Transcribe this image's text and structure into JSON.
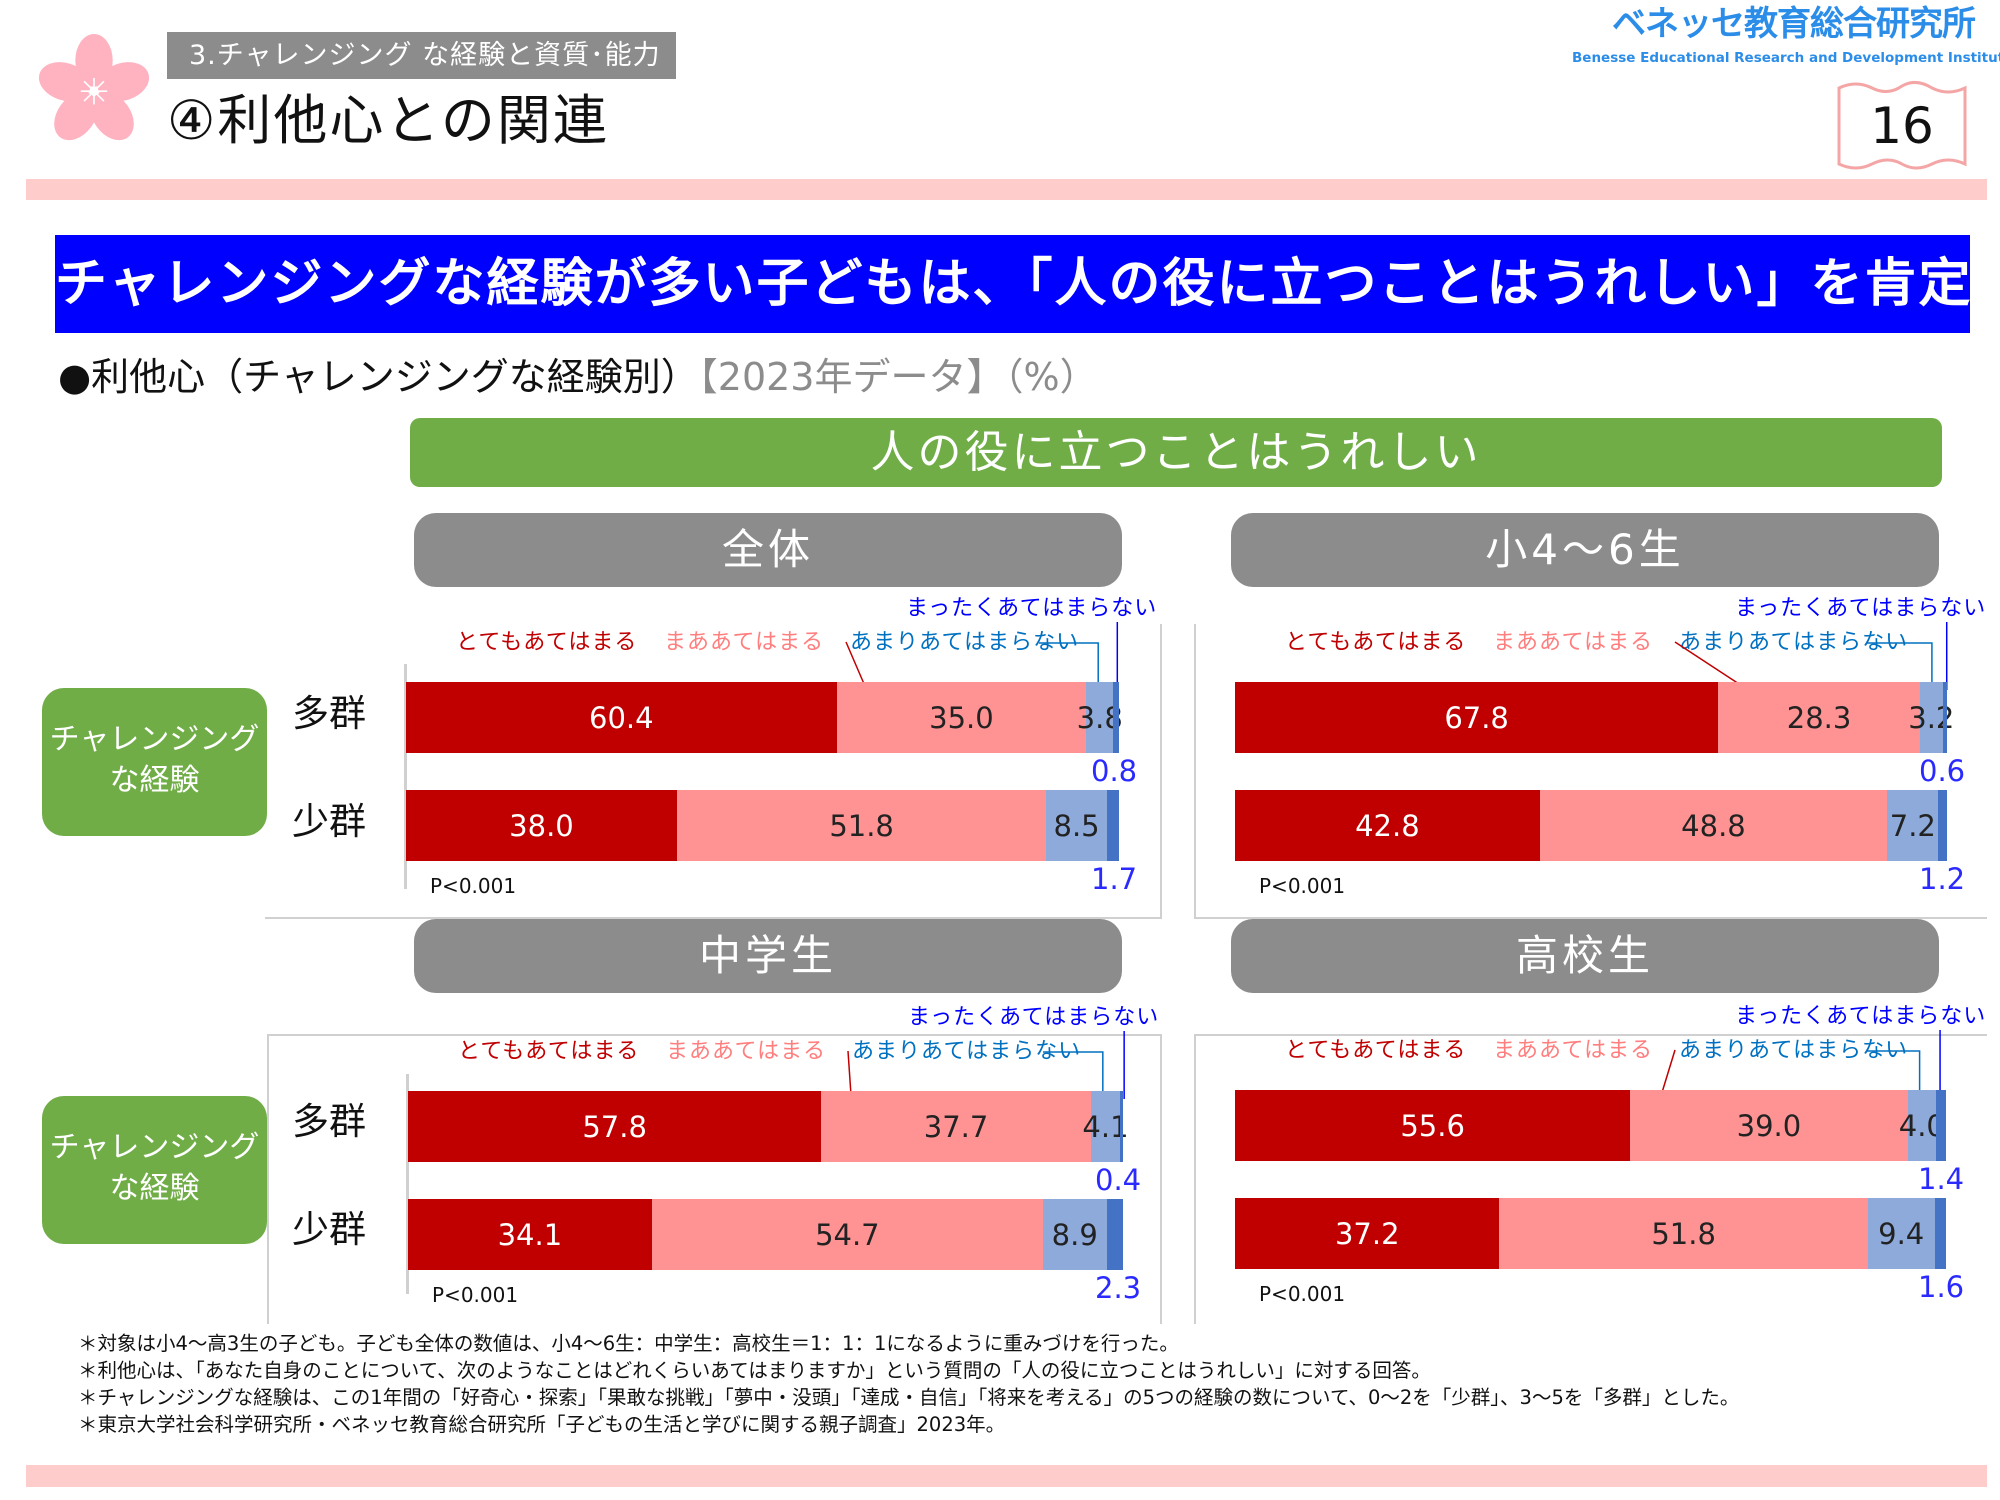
{
  "header": {
    "section": "3.チャレンジング な経験と資質･能力",
    "title": "④利他心との関連",
    "logo_jp": "ベネッセ教育総合研究所",
    "logo_en": "Benesse Educational Research and Development Institute",
    "page_number": "16"
  },
  "banner": "チャレンジングな経験が多い子どもは、「人の役に立つことはうれしい」を肯定",
  "subtitle": {
    "main": "●利他心（チャレンジングな経験別）",
    "note": "【2023年データ】（%）"
  },
  "question": "人の役に立つことはうれしい",
  "group_label": "チャレンジング\nな経験",
  "group_label_lines": [
    "チャレンジング",
    "な経験"
  ],
  "row_labels": [
    "多群",
    "少群"
  ],
  "colors": {
    "very": "#c00000",
    "somewhat": "#ff9393",
    "not_much": "#8eaadb",
    "not_at_all": "#4472c4"
  },
  "chart_data": [
    {
      "type": "bar",
      "stacked": true,
      "orientation": "horizontal",
      "title": "全体",
      "categories": [
        "多群",
        "少群"
      ],
      "legend": [
        "とてもあてはまる",
        "まああてはまる",
        "あまりあてはまらない",
        "まったくあてはまらない"
      ],
      "series": [
        {
          "name": "とてもあてはまる",
          "values": [
            60.4,
            38.0
          ]
        },
        {
          "name": "まああてはまる",
          "values": [
            35.0,
            51.8
          ]
        },
        {
          "name": "あまりあてはまらない",
          "values": [
            3.8,
            8.5
          ]
        },
        {
          "name": "まったくあてはまらない",
          "values": [
            0.8,
            1.7
          ]
        }
      ],
      "annotation": "P<0.001"
    },
    {
      "type": "bar",
      "stacked": true,
      "orientation": "horizontal",
      "title": "小4～6生",
      "categories": [
        "多群",
        "少群"
      ],
      "legend": [
        "とてもあてはまる",
        "まああてはまる",
        "あまりあてはまらない",
        "まったくあてはまらない"
      ],
      "series": [
        {
          "name": "とてもあてはまる",
          "values": [
            67.8,
            42.8
          ]
        },
        {
          "name": "まああてはまる",
          "values": [
            28.3,
            48.8
          ]
        },
        {
          "name": "あまりあてはまらない",
          "values": [
            3.2,
            7.2
          ]
        },
        {
          "name": "まったくあてはまらない",
          "values": [
            0.6,
            1.2
          ]
        }
      ],
      "annotation": "P<0.001"
    },
    {
      "type": "bar",
      "stacked": true,
      "orientation": "horizontal",
      "title": "中学生",
      "categories": [
        "多群",
        "少群"
      ],
      "legend": [
        "とてもあてはまる",
        "まああてはまる",
        "あまりあてはまらない",
        "まったくあてはまらない"
      ],
      "series": [
        {
          "name": "とてもあてはまる",
          "values": [
            57.8,
            34.1
          ]
        },
        {
          "name": "まああてはまる",
          "values": [
            37.7,
            54.7
          ]
        },
        {
          "name": "あまりあてはまらない",
          "values": [
            4.1,
            8.9
          ]
        },
        {
          "name": "まったくあてはまらない",
          "values": [
            0.4,
            2.3
          ]
        }
      ],
      "annotation": "P<0.001"
    },
    {
      "type": "bar",
      "stacked": true,
      "orientation": "horizontal",
      "title": "高校生",
      "categories": [
        "多群",
        "少群"
      ],
      "legend": [
        "とてもあてはまる",
        "まああてはまる",
        "あまりあてはまらない",
        "まったくあてはまらない"
      ],
      "series": [
        {
          "name": "とてもあてはまる",
          "values": [
            55.6,
            37.2
          ]
        },
        {
          "name": "まああてはまる",
          "values": [
            39.0,
            51.8
          ]
        },
        {
          "name": "あまりあてはまらない",
          "values": [
            4.0,
            9.4
          ]
        },
        {
          "name": "まったくあてはまらない",
          "values": [
            1.4,
            1.6
          ]
        }
      ],
      "annotation": "P<0.001"
    }
  ],
  "notes": [
    "＊対象は小4～高3生の子ども。子ども全体の数値は、小4～6生：中学生：高校生＝1：1：1になるように重みづけを行った。",
    "＊利他心は、「あなた自身のことについて、次のようなことはどれくらいあてはまりますか」という質問の「人の役に立つことはうれしい」に対する回答。",
    "＊チャレンジングな経験は、この1年間の「好奇心・探索」「果敢な挑戦」「夢中・没頭」「達成・自信」「将来を考える」の5つの経験の数について、0～2を「少群」、3～5を「多群」とした。",
    "＊東京大学社会科学研究所・ベネッセ教育総合研究所「子どもの生活と学びに関する親子調査」2023年。"
  ]
}
